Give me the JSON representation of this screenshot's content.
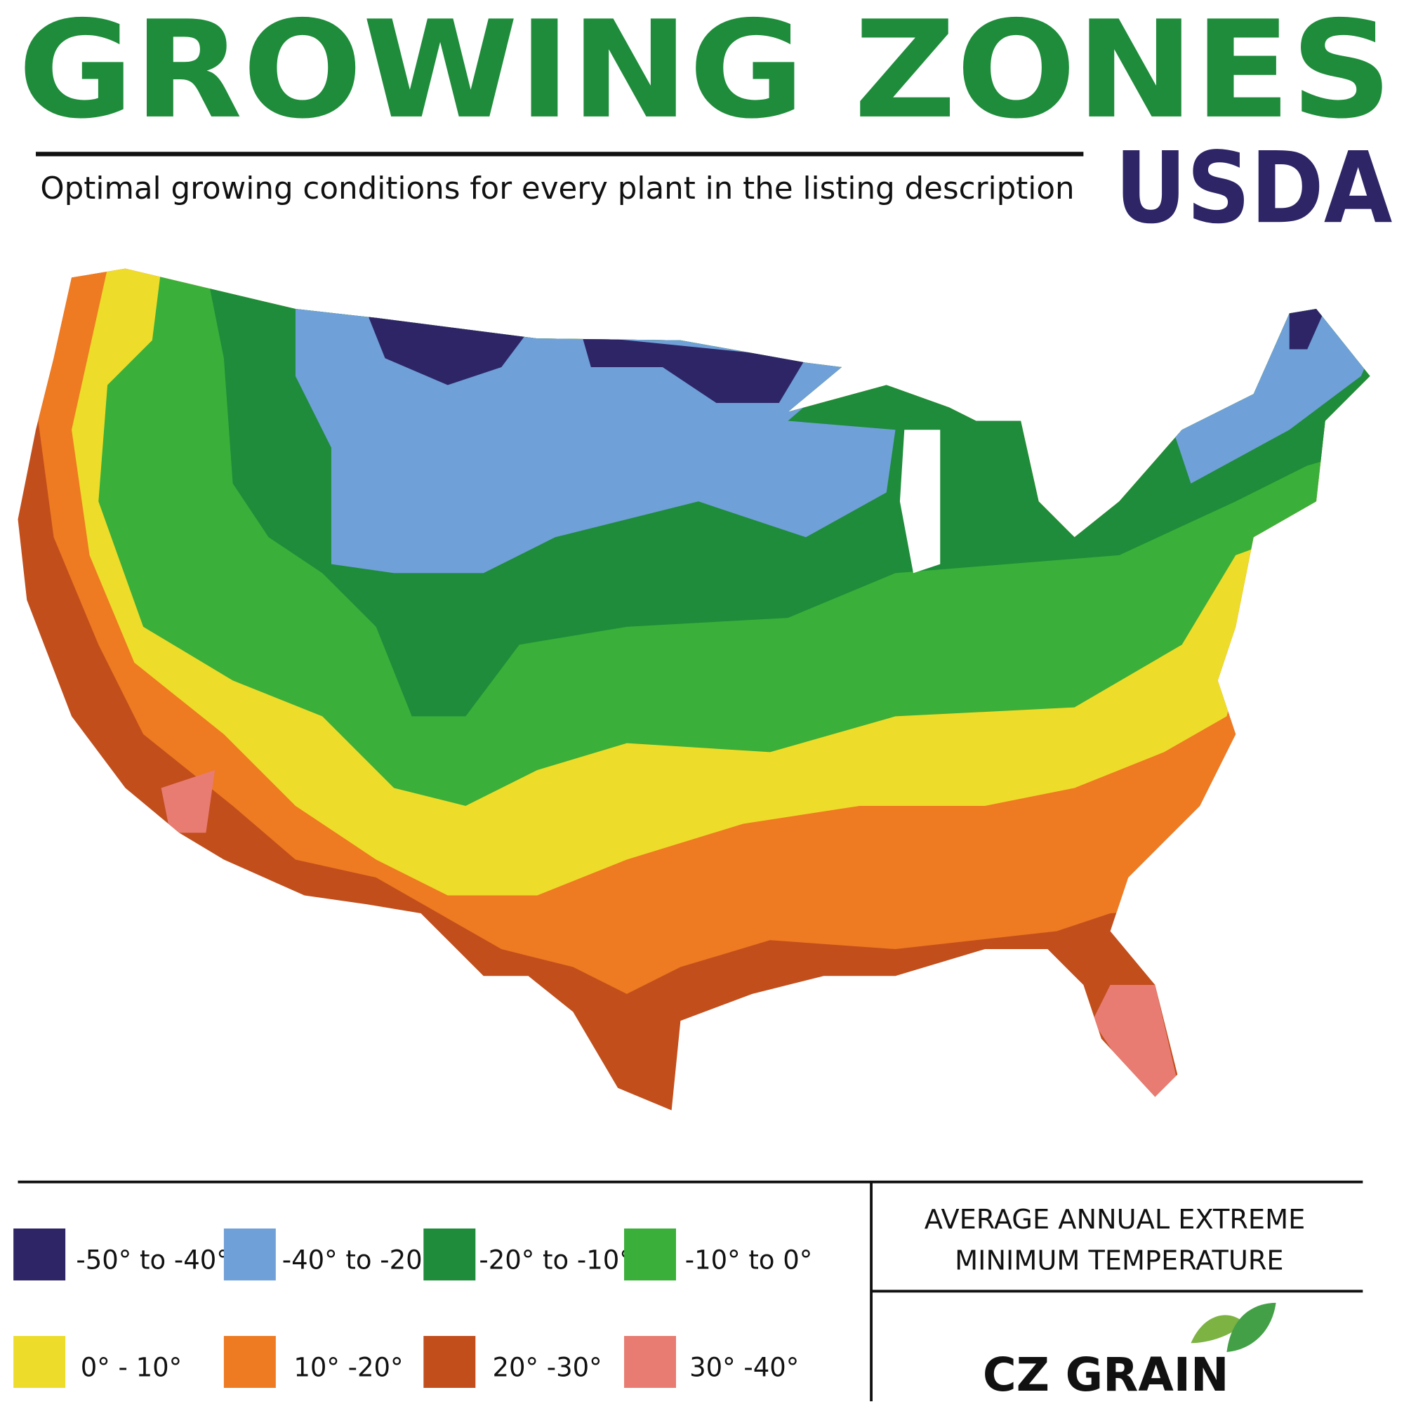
{
  "header": {
    "title": "GROWING ZONES",
    "subtitle": "Optimal growing conditions for every plant in the listing description",
    "badge": "USDA"
  },
  "legend": {
    "title": [
      "AVERAGE ANNUAL EXTREME",
      "MINIMUM TEMPERATURE"
    ],
    "items": [
      {
        "label": "-50° to -40°",
        "color": "#2e2566"
      },
      {
        "label": "-40° to -20°",
        "color": "#6fa0d8"
      },
      {
        "label": "-20° to -10°",
        "color": "#1e8c3a"
      },
      {
        "label": "-10° to 0°",
        "color": "#3aaf3a"
      },
      {
        "label": "0° - 10°",
        "color": "#eedc2a"
      },
      {
        "label": "10° -20°",
        "color": "#ee7a22"
      },
      {
        "label": "20° -30°",
        "color": "#c24e1c"
      },
      {
        "label": "30° -40°",
        "color": "#e87c72"
      }
    ]
  },
  "brand": "CZ GRAIN"
}
